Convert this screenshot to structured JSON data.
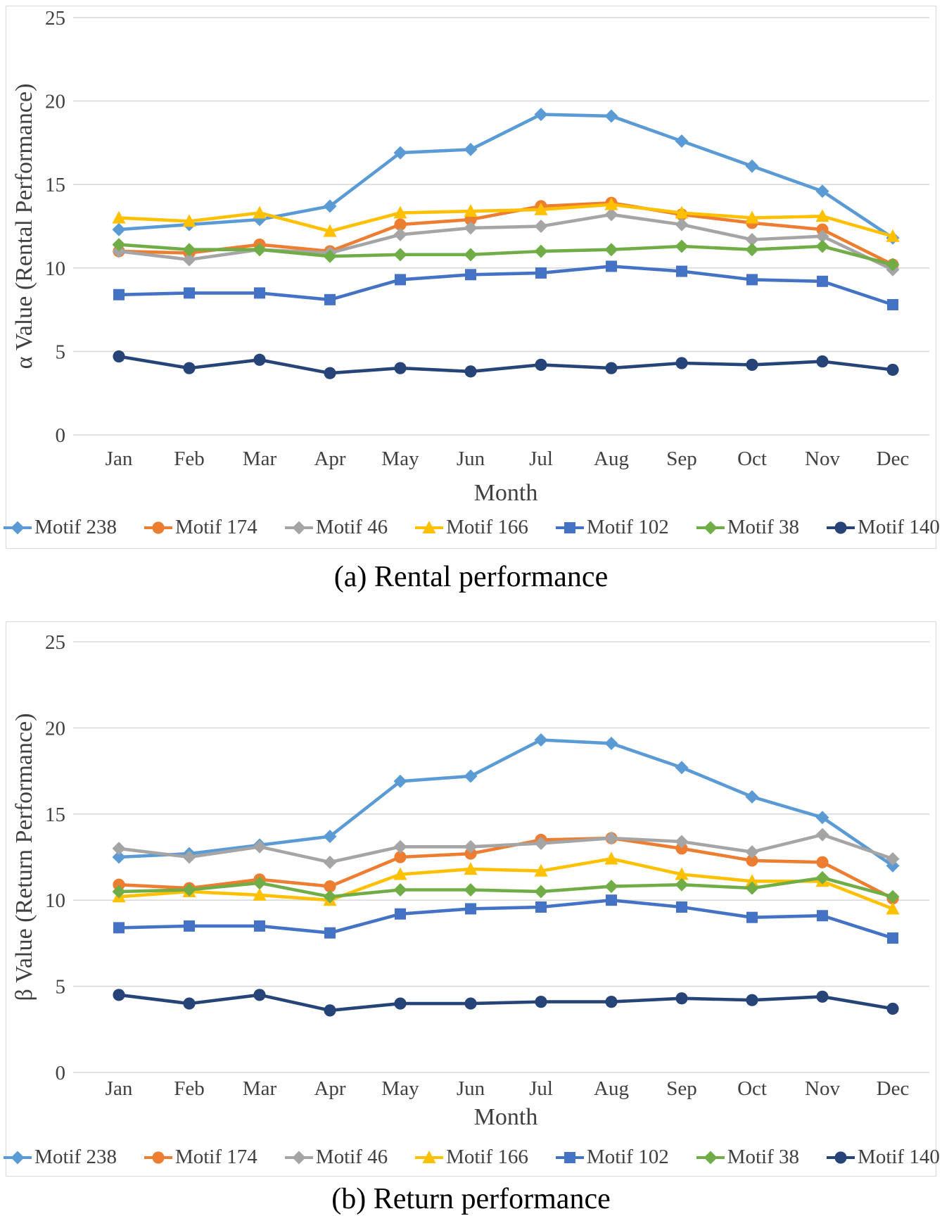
{
  "figure": {
    "caption_a": "(a) Rental performance",
    "caption_b": "(b) Return performance"
  },
  "colors": {
    "motif_238": "#5B9BD5",
    "motif_174": "#ED7D31",
    "motif_46": "#A5A5A5",
    "motif_166": "#FFC000",
    "motif_102": "#4472C4",
    "motif_38": "#70AD47",
    "motif_140": "#264478",
    "gridline": "#D9D9D9",
    "axis_text": "#404040",
    "panel_border": "#D9D9D9"
  },
  "chart_data": [
    {
      "type": "line",
      "caption": "(a) Rental performance",
      "xlabel": "Month",
      "ylabel": "α Value (Rental Performance)",
      "ylim": [
        0,
        25
      ],
      "yticks": [
        0,
        5,
        10,
        15,
        20,
        25
      ],
      "grid": true,
      "legend_position": "bottom",
      "categories": [
        "Jan",
        "Feb",
        "Mar",
        "Apr",
        "May",
        "Jun",
        "Jul",
        "Aug",
        "Sep",
        "Oct",
        "Nov",
        "Dec"
      ],
      "series": [
        {
          "name": "Motif 238",
          "color": "#5B9BD5",
          "marker": "diamond",
          "values": [
            12.3,
            12.6,
            12.9,
            13.7,
            16.9,
            17.1,
            19.2,
            19.1,
            17.6,
            16.1,
            14.6,
            11.8
          ]
        },
        {
          "name": "Motif 174",
          "color": "#ED7D31",
          "marker": "circle",
          "values": [
            11.0,
            10.9,
            11.4,
            11.0,
            12.6,
            12.9,
            13.7,
            13.9,
            13.2,
            12.7,
            12.3,
            10.2
          ]
        },
        {
          "name": "Motif 46",
          "color": "#A5A5A5",
          "marker": "diamond",
          "values": [
            11.0,
            10.5,
            11.1,
            10.9,
            12.0,
            12.4,
            12.5,
            13.2,
            12.6,
            11.7,
            11.9,
            9.9
          ]
        },
        {
          "name": "Motif 166",
          "color": "#FFC000",
          "marker": "triangle",
          "values": [
            13.0,
            12.8,
            13.3,
            12.2,
            13.3,
            13.4,
            13.5,
            13.8,
            13.3,
            13.0,
            13.1,
            11.9
          ]
        },
        {
          "name": "Motif 102",
          "color": "#4472C4",
          "marker": "square",
          "values": [
            8.4,
            8.5,
            8.5,
            8.1,
            9.3,
            9.6,
            9.7,
            10.1,
            9.8,
            9.3,
            9.2,
            7.8
          ]
        },
        {
          "name": "Motif 38",
          "color": "#70AD47",
          "marker": "diamond",
          "values": [
            11.4,
            11.1,
            11.1,
            10.7,
            10.8,
            10.8,
            11.0,
            11.1,
            11.3,
            11.1,
            11.3,
            10.2
          ]
        },
        {
          "name": "Motif 140",
          "color": "#264478",
          "marker": "circle",
          "values": [
            4.7,
            4.0,
            4.5,
            3.7,
            4.0,
            3.8,
            4.2,
            4.0,
            4.3,
            4.2,
            4.4,
            3.9
          ]
        }
      ]
    },
    {
      "type": "line",
      "caption": "(b) Return performance",
      "xlabel": "Month",
      "ylabel": "β Value (Return Performance)",
      "ylim": [
        0,
        25
      ],
      "yticks": [
        0,
        5,
        10,
        15,
        20,
        25
      ],
      "grid": true,
      "legend_position": "bottom",
      "categories": [
        "Jan",
        "Feb",
        "Mar",
        "Apr",
        "May",
        "Jun",
        "Jul",
        "Aug",
        "Sep",
        "Oct",
        "Nov",
        "Dec"
      ],
      "series": [
        {
          "name": "Motif 238",
          "color": "#5B9BD5",
          "marker": "diamond",
          "values": [
            12.5,
            12.7,
            13.2,
            13.7,
            16.9,
            17.2,
            19.3,
            19.1,
            17.7,
            16.0,
            14.8,
            12.0
          ]
        },
        {
          "name": "Motif 174",
          "color": "#ED7D31",
          "marker": "circle",
          "values": [
            10.9,
            10.7,
            11.2,
            10.8,
            12.5,
            12.7,
            13.5,
            13.6,
            13.0,
            12.3,
            12.2,
            10.1
          ]
        },
        {
          "name": "Motif 46",
          "color": "#A5A5A5",
          "marker": "diamond",
          "values": [
            13.0,
            12.5,
            13.1,
            12.2,
            13.1,
            13.1,
            13.3,
            13.6,
            13.4,
            12.8,
            13.8,
            12.4
          ]
        },
        {
          "name": "Motif 166",
          "color": "#FFC000",
          "marker": "triangle",
          "values": [
            10.2,
            10.5,
            10.3,
            10.0,
            11.5,
            11.8,
            11.7,
            12.4,
            11.5,
            11.1,
            11.1,
            9.5
          ]
        },
        {
          "name": "Motif 102",
          "color": "#4472C4",
          "marker": "square",
          "values": [
            8.4,
            8.5,
            8.5,
            8.1,
            9.2,
            9.5,
            9.6,
            10.0,
            9.6,
            9.0,
            9.1,
            7.8
          ]
        },
        {
          "name": "Motif 38",
          "color": "#70AD47",
          "marker": "diamond",
          "values": [
            10.5,
            10.6,
            11.0,
            10.2,
            10.6,
            10.6,
            10.5,
            10.8,
            10.9,
            10.7,
            11.3,
            10.2
          ]
        },
        {
          "name": "Motif 140",
          "color": "#264478",
          "marker": "circle",
          "values": [
            4.5,
            4.0,
            4.5,
            3.6,
            4.0,
            4.0,
            4.1,
            4.1,
            4.3,
            4.2,
            4.4,
            3.7
          ]
        }
      ]
    }
  ]
}
